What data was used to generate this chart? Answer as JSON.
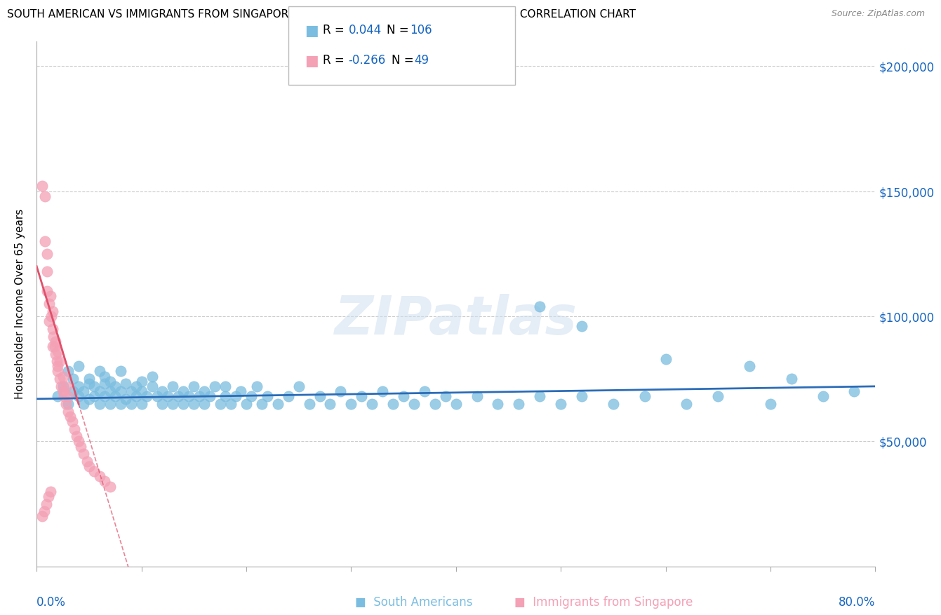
{
  "title": "SOUTH AMERICAN VS IMMIGRANTS FROM SINGAPORE HOUSEHOLDER INCOME OVER 65 YEARS CORRELATION CHART",
  "source": "Source: ZipAtlas.com",
  "ylabel": "Householder Income Over 65 years",
  "xlim": [
    0.0,
    0.8
  ],
  "ylim": [
    0,
    210000
  ],
  "r_south_american": 0.044,
  "n_south_american": 106,
  "r_singapore": -0.266,
  "n_singapore": 49,
  "blue_color": "#7BBDE0",
  "pink_color": "#F4A0B5",
  "blue_line_color": "#2B6CB8",
  "pink_line_color": "#E0506A",
  "axis_color": "#1565C0",
  "watermark": "ZIPatlas",
  "south_american_x": [
    0.02,
    0.025,
    0.03,
    0.03,
    0.035,
    0.035,
    0.04,
    0.04,
    0.04,
    0.045,
    0.045,
    0.05,
    0.05,
    0.05,
    0.055,
    0.055,
    0.06,
    0.06,
    0.06,
    0.065,
    0.065,
    0.065,
    0.07,
    0.07,
    0.07,
    0.075,
    0.075,
    0.08,
    0.08,
    0.08,
    0.085,
    0.085,
    0.09,
    0.09,
    0.095,
    0.095,
    0.1,
    0.1,
    0.1,
    0.105,
    0.11,
    0.11,
    0.115,
    0.12,
    0.12,
    0.125,
    0.13,
    0.13,
    0.135,
    0.14,
    0.14,
    0.145,
    0.15,
    0.15,
    0.155,
    0.16,
    0.16,
    0.165,
    0.17,
    0.175,
    0.18,
    0.18,
    0.185,
    0.19,
    0.195,
    0.2,
    0.205,
    0.21,
    0.215,
    0.22,
    0.23,
    0.24,
    0.25,
    0.26,
    0.27,
    0.28,
    0.29,
    0.3,
    0.31,
    0.32,
    0.33,
    0.34,
    0.35,
    0.36,
    0.37,
    0.38,
    0.39,
    0.4,
    0.42,
    0.44,
    0.46,
    0.48,
    0.5,
    0.52,
    0.55,
    0.58,
    0.62,
    0.65,
    0.7,
    0.75,
    0.48,
    0.52,
    0.6,
    0.68,
    0.72,
    0.78
  ],
  "south_american_y": [
    68000,
    72000,
    65000,
    78000,
    70000,
    75000,
    68000,
    72000,
    80000,
    65000,
    70000,
    73000,
    67000,
    75000,
    68000,
    72000,
    65000,
    78000,
    70000,
    73000,
    68000,
    76000,
    65000,
    70000,
    74000,
    68000,
    72000,
    65000,
    78000,
    70000,
    73000,
    67000,
    65000,
    70000,
    68000,
    72000,
    65000,
    70000,
    74000,
    68000,
    72000,
    76000,
    68000,
    65000,
    70000,
    68000,
    65000,
    72000,
    68000,
    65000,
    70000,
    68000,
    72000,
    65000,
    68000,
    65000,
    70000,
    68000,
    72000,
    65000,
    68000,
    72000,
    65000,
    68000,
    70000,
    65000,
    68000,
    72000,
    65000,
    68000,
    65000,
    68000,
    72000,
    65000,
    68000,
    65000,
    70000,
    65000,
    68000,
    65000,
    70000,
    65000,
    68000,
    65000,
    70000,
    65000,
    68000,
    65000,
    68000,
    65000,
    65000,
    68000,
    65000,
    68000,
    65000,
    68000,
    65000,
    68000,
    65000,
    68000,
    104000,
    96000,
    83000,
    80000,
    75000,
    70000
  ],
  "singapore_x": [
    0.005,
    0.008,
    0.008,
    0.01,
    0.01,
    0.01,
    0.012,
    0.012,
    0.013,
    0.014,
    0.015,
    0.015,
    0.015,
    0.016,
    0.017,
    0.018,
    0.018,
    0.019,
    0.02,
    0.02,
    0.02,
    0.022,
    0.022,
    0.023,
    0.025,
    0.025,
    0.026,
    0.028,
    0.028,
    0.03,
    0.03,
    0.032,
    0.034,
    0.036,
    0.038,
    0.04,
    0.042,
    0.045,
    0.048,
    0.05,
    0.055,
    0.06,
    0.065,
    0.07,
    0.005,
    0.007,
    0.009,
    0.011,
    0.013
  ],
  "singapore_y": [
    152000,
    148000,
    130000,
    125000,
    118000,
    110000,
    105000,
    98000,
    108000,
    100000,
    95000,
    88000,
    102000,
    92000,
    88000,
    85000,
    90000,
    82000,
    80000,
    86000,
    78000,
    75000,
    82000,
    72000,
    70000,
    76000,
    68000,
    65000,
    72000,
    62000,
    68000,
    60000,
    58000,
    55000,
    52000,
    50000,
    48000,
    45000,
    42000,
    40000,
    38000,
    36000,
    34000,
    32000,
    20000,
    22000,
    25000,
    28000,
    30000
  ]
}
